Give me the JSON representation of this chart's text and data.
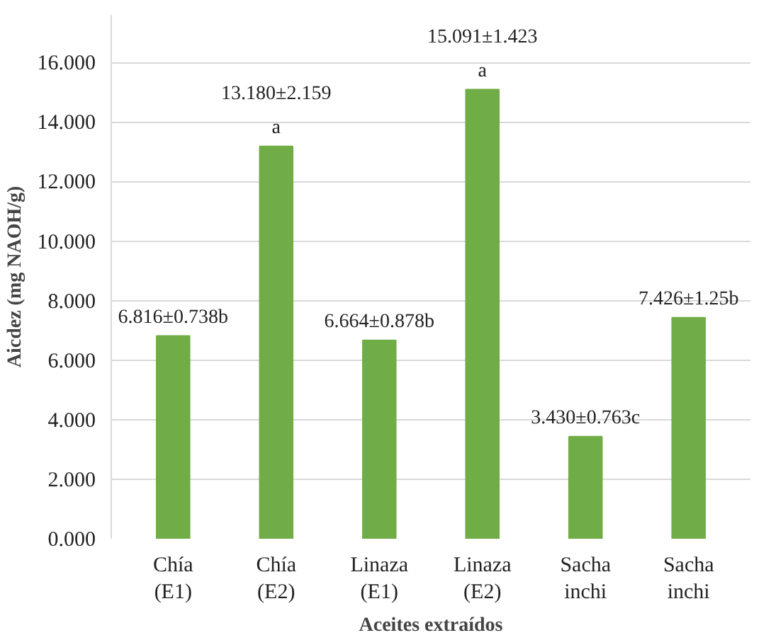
{
  "chart_data": {
    "type": "bar",
    "xlabel": "Aceites extraídos",
    "ylabel": "Aicdez (mg NAOH/g)",
    "categories": [
      "Chía (E1)",
      "Chía (E2)",
      "Linaza (E1)",
      "Linaza (E2)",
      "Sacha inchi",
      "Sacha inchi"
    ],
    "values": [
      6.816,
      13.18,
      6.664,
      15.091,
      3.43,
      7.426
    ],
    "value_labels": [
      "6.816±0.738b",
      "13.180±2.159\na",
      "6.664±0.878b",
      "15.091±1.423\na",
      "3.430±0.763c",
      "7.426±1.25b"
    ],
    "color": "#70ad47",
    "ylim": [
      0,
      17.6
    ],
    "yticks": [
      {
        "value": 0,
        "label": "0.000"
      },
      {
        "value": 2,
        "label": "2.000"
      },
      {
        "value": 4,
        "label": "4.000"
      },
      {
        "value": 6,
        "label": "6.000"
      },
      {
        "value": 8,
        "label": "8.000"
      },
      {
        "value": 10,
        "label": "10.000"
      },
      {
        "value": 12,
        "label": "12.000"
      },
      {
        "value": 14,
        "label": "14.000"
      },
      {
        "value": 16,
        "label": "16.000"
      }
    ],
    "grid": "y"
  }
}
